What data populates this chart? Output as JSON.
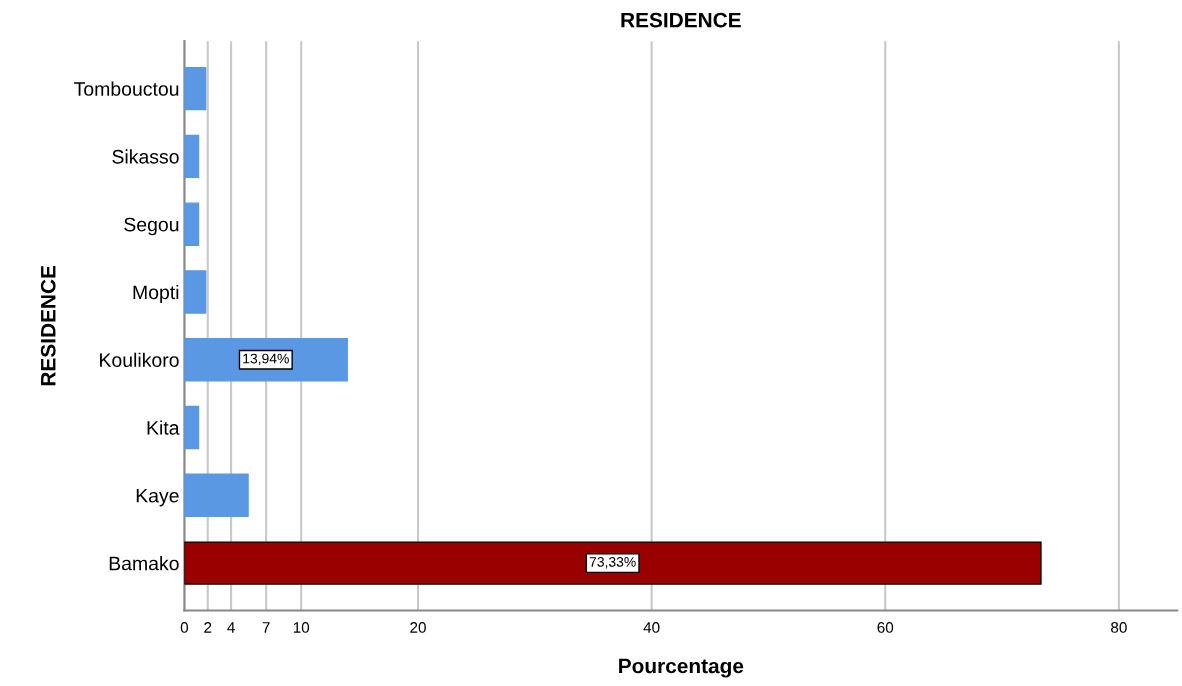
{
  "chart_data": {
    "type": "bar",
    "orientation": "horizontal",
    "title": "RESIDENCE",
    "xlabel": "Pourcentage",
    "ylabel": "RESIDENCE",
    "categories": [
      "Tombouctou",
      "Sikasso",
      "Segou",
      "Mopti",
      "Koulikoro",
      "Kita",
      "Kaye",
      "Bamako"
    ],
    "values": [
      1.82,
      1.21,
      1.21,
      1.82,
      13.94,
      1.21,
      5.45,
      73.33
    ],
    "colors": [
      "#5a98e4",
      "#5a98e4",
      "#5a98e4",
      "#5a98e4",
      "#5a98e4",
      "#5a98e4",
      "#5a98e4",
      "#990000"
    ],
    "value_labels": [
      null,
      null,
      null,
      null,
      "13,94%",
      null,
      null,
      "73,33%"
    ],
    "xlim": [
      0,
      85
    ],
    "xticks": [
      0,
      2,
      4,
      7,
      10,
      20,
      40,
      60,
      80
    ],
    "grid": "x"
  }
}
